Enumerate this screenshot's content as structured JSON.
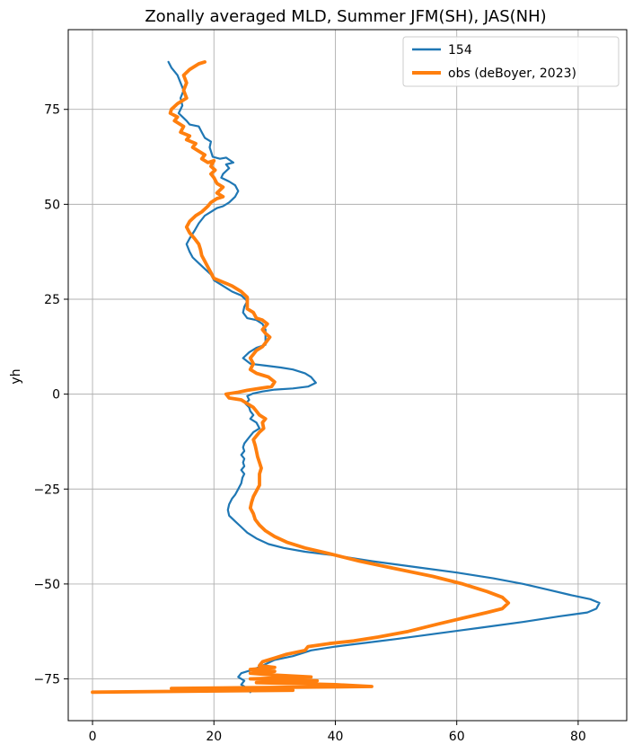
{
  "colors": {
    "series_154": "#1f77b4",
    "series_obs": "#ff7f0e",
    "grid": "#b0b0b0"
  },
  "chart_data": {
    "type": "line",
    "title": "Zonally averaged MLD, Summer JFM(SH), JAS(NH)",
    "xlabel": "",
    "ylabel": "yh",
    "xlim": [
      -4,
      88
    ],
    "ylim": [
      -86,
      96
    ],
    "xticks": [
      0,
      20,
      40,
      60,
      80
    ],
    "yticks": [
      -75,
      -50,
      -25,
      0,
      25,
      50,
      75
    ],
    "grid": true,
    "legend_position": "upper right",
    "series": [
      {
        "name": "154",
        "color": "#1f77b4",
        "points": [
          [
            12.5,
            87.5
          ],
          [
            13,
            86
          ],
          [
            14,
            84
          ],
          [
            14.5,
            82
          ],
          [
            15,
            80
          ],
          [
            14.5,
            78
          ],
          [
            14.8,
            76
          ],
          [
            14.2,
            74
          ],
          [
            15.5,
            72
          ],
          [
            16,
            71
          ],
          [
            17.5,
            70.5
          ],
          [
            18,
            69
          ],
          [
            18.5,
            67.5
          ],
          [
            19.5,
            66.5
          ],
          [
            19.3,
            65
          ],
          [
            19.5,
            64
          ],
          [
            19.8,
            62.5
          ],
          [
            21,
            62
          ],
          [
            22,
            62.3
          ],
          [
            23.2,
            61
          ],
          [
            22,
            60.5
          ],
          [
            22.5,
            59.5
          ],
          [
            21.5,
            58
          ],
          [
            21.2,
            57
          ],
          [
            22.5,
            56
          ],
          [
            23.5,
            55
          ],
          [
            24,
            53.5
          ],
          [
            23.5,
            52
          ],
          [
            22.5,
            50.5
          ],
          [
            21.5,
            49.5
          ],
          [
            20.5,
            49
          ],
          [
            19.5,
            48
          ],
          [
            18.5,
            47
          ],
          [
            17.5,
            45
          ],
          [
            16.8,
            43
          ],
          [
            16,
            41
          ],
          [
            15.5,
            39.5
          ],
          [
            16,
            37.5
          ],
          [
            16.5,
            36
          ],
          [
            17.5,
            34.5
          ],
          [
            18.5,
            33
          ],
          [
            19.5,
            31.5
          ],
          [
            20,
            30
          ],
          [
            21,
            29
          ],
          [
            22,
            28
          ],
          [
            23,
            27
          ],
          [
            24.5,
            26
          ],
          [
            25.5,
            24.5
          ],
          [
            25,
            23
          ],
          [
            24.8,
            21.5
          ],
          [
            25.5,
            20
          ],
          [
            27,
            19.5
          ],
          [
            28,
            18.5
          ],
          [
            28.5,
            17
          ],
          [
            28.5,
            15
          ],
          [
            28.5,
            13
          ],
          [
            27,
            12.2
          ],
          [
            25.8,
            11
          ],
          [
            24.8,
            9.5
          ],
          [
            26,
            8
          ],
          [
            28.5,
            7.5
          ],
          [
            31,
            7
          ],
          [
            33,
            6.5
          ],
          [
            35,
            5.5
          ],
          [
            36,
            4.5
          ],
          [
            36.8,
            3
          ],
          [
            35.5,
            2
          ],
          [
            33,
            1.5
          ],
          [
            30,
            1.2
          ],
          [
            28,
            0.7
          ],
          [
            26.5,
            0.2
          ],
          [
            25.5,
            -0.5
          ],
          [
            25.8,
            -1.5
          ],
          [
            25.2,
            -2.5
          ],
          [
            25.8,
            -3.5
          ],
          [
            26,
            -4.5
          ],
          [
            26.5,
            -5.5
          ],
          [
            26,
            -6.5
          ],
          [
            27,
            -7.5
          ],
          [
            27.5,
            -9
          ],
          [
            26.5,
            -10
          ],
          [
            26,
            -11
          ],
          [
            25.5,
            -12
          ],
          [
            25,
            -13
          ],
          [
            24.8,
            -14
          ],
          [
            25,
            -15
          ],
          [
            24.5,
            -16
          ],
          [
            25,
            -17
          ],
          [
            24.8,
            -18
          ],
          [
            25,
            -19
          ],
          [
            24.5,
            -20
          ],
          [
            25,
            -21
          ],
          [
            24.7,
            -22
          ],
          [
            24.5,
            -23.5
          ],
          [
            24,
            -25
          ],
          [
            23.5,
            -26.5
          ],
          [
            23,
            -27.5
          ],
          [
            22.5,
            -29
          ],
          [
            22.3,
            -30.5
          ],
          [
            22.5,
            -32
          ],
          [
            23.5,
            -33.5
          ],
          [
            24.5,
            -35
          ],
          [
            25.5,
            -36.5
          ],
          [
            27,
            -38
          ],
          [
            29,
            -39.5
          ],
          [
            31.5,
            -40.5
          ],
          [
            35,
            -41.5
          ],
          [
            40,
            -42.5
          ],
          [
            46,
            -44
          ],
          [
            53,
            -45.5
          ],
          [
            60,
            -47
          ],
          [
            66,
            -48.5
          ],
          [
            71,
            -50
          ],
          [
            75,
            -51.5
          ],
          [
            79,
            -53
          ],
          [
            82,
            -54
          ],
          [
            83.5,
            -55
          ],
          [
            83,
            -56.5
          ],
          [
            81.5,
            -57.5
          ],
          [
            77,
            -58.5
          ],
          [
            71,
            -60
          ],
          [
            64,
            -61.5
          ],
          [
            57,
            -63
          ],
          [
            50,
            -64.5
          ],
          [
            45,
            -65.5
          ],
          [
            40,
            -66.5
          ],
          [
            36,
            -67.5
          ],
          [
            33,
            -69
          ],
          [
            30,
            -70
          ],
          [
            28,
            -71.5
          ],
          [
            26.5,
            -72.5
          ],
          [
            24.5,
            -73.5
          ],
          [
            24,
            -74.5
          ],
          [
            25,
            -75.5
          ],
          [
            24.5,
            -76.5
          ],
          [
            25.5,
            -77.5
          ],
          [
            26,
            -78.5
          ]
        ]
      },
      {
        "name": "obs (deBoyer, 2023)",
        "color": "#ff7f0e",
        "points": [
          [
            18.5,
            87.5
          ],
          [
            17.5,
            87
          ],
          [
            16,
            85.5
          ],
          [
            15,
            84
          ],
          [
            15.5,
            82
          ],
          [
            15,
            80
          ],
          [
            15.5,
            78
          ],
          [
            14,
            76.5
          ],
          [
            13,
            75
          ],
          [
            12.8,
            74
          ],
          [
            14,
            73
          ],
          [
            13.5,
            72
          ],
          [
            15,
            70.5
          ],
          [
            14.5,
            69
          ],
          [
            16,
            68
          ],
          [
            15.5,
            67
          ],
          [
            17,
            66
          ],
          [
            16.5,
            65
          ],
          [
            17.5,
            64
          ],
          [
            18.5,
            63
          ],
          [
            18,
            62
          ],
          [
            19,
            61
          ],
          [
            20,
            61.5
          ],
          [
            19.5,
            60
          ],
          [
            20.2,
            59
          ],
          [
            19.5,
            58
          ],
          [
            20,
            57
          ],
          [
            20.5,
            55.5
          ],
          [
            21.5,
            54.5
          ],
          [
            20.5,
            53
          ],
          [
            21.5,
            52
          ],
          [
            20.5,
            51.5
          ],
          [
            19.5,
            50.5
          ],
          [
            19,
            49.5
          ],
          [
            18,
            48
          ],
          [
            17,
            47
          ],
          [
            16,
            45.5
          ],
          [
            15.5,
            44
          ],
          [
            16,
            42.5
          ],
          [
            16.8,
            41
          ],
          [
            17.5,
            39.5
          ],
          [
            17.8,
            38
          ],
          [
            18,
            36.5
          ],
          [
            18.5,
            35
          ],
          [
            19,
            33.5
          ],
          [
            19.5,
            32
          ],
          [
            20,
            30.5
          ],
          [
            21.5,
            29.5
          ],
          [
            23,
            28.5
          ],
          [
            24.5,
            27
          ],
          [
            25.5,
            25.5
          ],
          [
            25.5,
            24
          ],
          [
            25.5,
            22.5
          ],
          [
            26.5,
            21.5
          ],
          [
            27,
            20
          ],
          [
            28,
            19.5
          ],
          [
            28.8,
            18.5
          ],
          [
            28,
            17
          ],
          [
            28.5,
            16
          ],
          [
            29.2,
            15
          ],
          [
            28.5,
            13.5
          ],
          [
            28,
            12.5
          ],
          [
            27,
            11.5
          ],
          [
            26.5,
            10.5
          ],
          [
            26,
            9.5
          ],
          [
            26.5,
            8
          ],
          [
            26,
            6.5
          ],
          [
            27,
            5.5
          ],
          [
            28,
            5
          ],
          [
            29,
            4.5
          ],
          [
            30,
            3.2
          ],
          [
            29.5,
            2
          ],
          [
            27.5,
            1.5
          ],
          [
            25.5,
            1
          ],
          [
            24,
            0.5
          ],
          [
            22,
            0
          ],
          [
            22.5,
            -1
          ],
          [
            24.5,
            -1.5
          ],
          [
            25.5,
            -2.5
          ],
          [
            26.5,
            -3.5
          ],
          [
            27,
            -4.5
          ],
          [
            27.5,
            -5.5
          ],
          [
            28.5,
            -6.5
          ],
          [
            28,
            -7.5
          ],
          [
            28.2,
            -9
          ],
          [
            27.5,
            -10
          ],
          [
            27,
            -11
          ],
          [
            26.5,
            -12
          ],
          [
            26.8,
            -13.5
          ],
          [
            27,
            -15
          ],
          [
            27.2,
            -16.5
          ],
          [
            27.5,
            -18
          ],
          [
            27.8,
            -19.5
          ],
          [
            27.5,
            -21
          ],
          [
            27.5,
            -22.5
          ],
          [
            27.5,
            -24
          ],
          [
            27,
            -25.5
          ],
          [
            26.5,
            -27
          ],
          [
            26.2,
            -28.5
          ],
          [
            26,
            -30
          ],
          [
            26.5,
            -31.5
          ],
          [
            26.8,
            -33
          ],
          [
            27.5,
            -34.5
          ],
          [
            28.5,
            -36
          ],
          [
            30,
            -37.5
          ],
          [
            32,
            -39
          ],
          [
            35,
            -40.5
          ],
          [
            39,
            -42
          ],
          [
            44,
            -44
          ],
          [
            50,
            -46
          ],
          [
            56,
            -48
          ],
          [
            61,
            -50
          ],
          [
            65,
            -52
          ],
          [
            67.5,
            -53.5
          ],
          [
            68.5,
            -55
          ],
          [
            67.5,
            -56.5
          ],
          [
            65,
            -57.5
          ],
          [
            61,
            -59
          ],
          [
            57,
            -60.5
          ],
          [
            52,
            -62.5
          ],
          [
            47,
            -64
          ],
          [
            43,
            -65
          ],
          [
            39,
            -65.7
          ],
          [
            35.5,
            -66.5
          ],
          [
            35,
            -67.5
          ],
          [
            32,
            -68.5
          ],
          [
            30,
            -69.5
          ],
          [
            28,
            -70.5
          ],
          [
            27.5,
            -71.5
          ],
          [
            30,
            -72
          ],
          [
            26,
            -72.5
          ],
          [
            30,
            -73
          ],
          [
            26,
            -73.5
          ],
          [
            30,
            -74
          ],
          [
            36,
            -74.5
          ],
          [
            26,
            -75
          ],
          [
            37,
            -75.5
          ],
          [
            27,
            -76
          ],
          [
            40,
            -76.5
          ],
          [
            46,
            -77
          ],
          [
            13,
            -77.5
          ],
          [
            33,
            -78
          ],
          [
            0,
            -78.5
          ]
        ]
      }
    ]
  }
}
